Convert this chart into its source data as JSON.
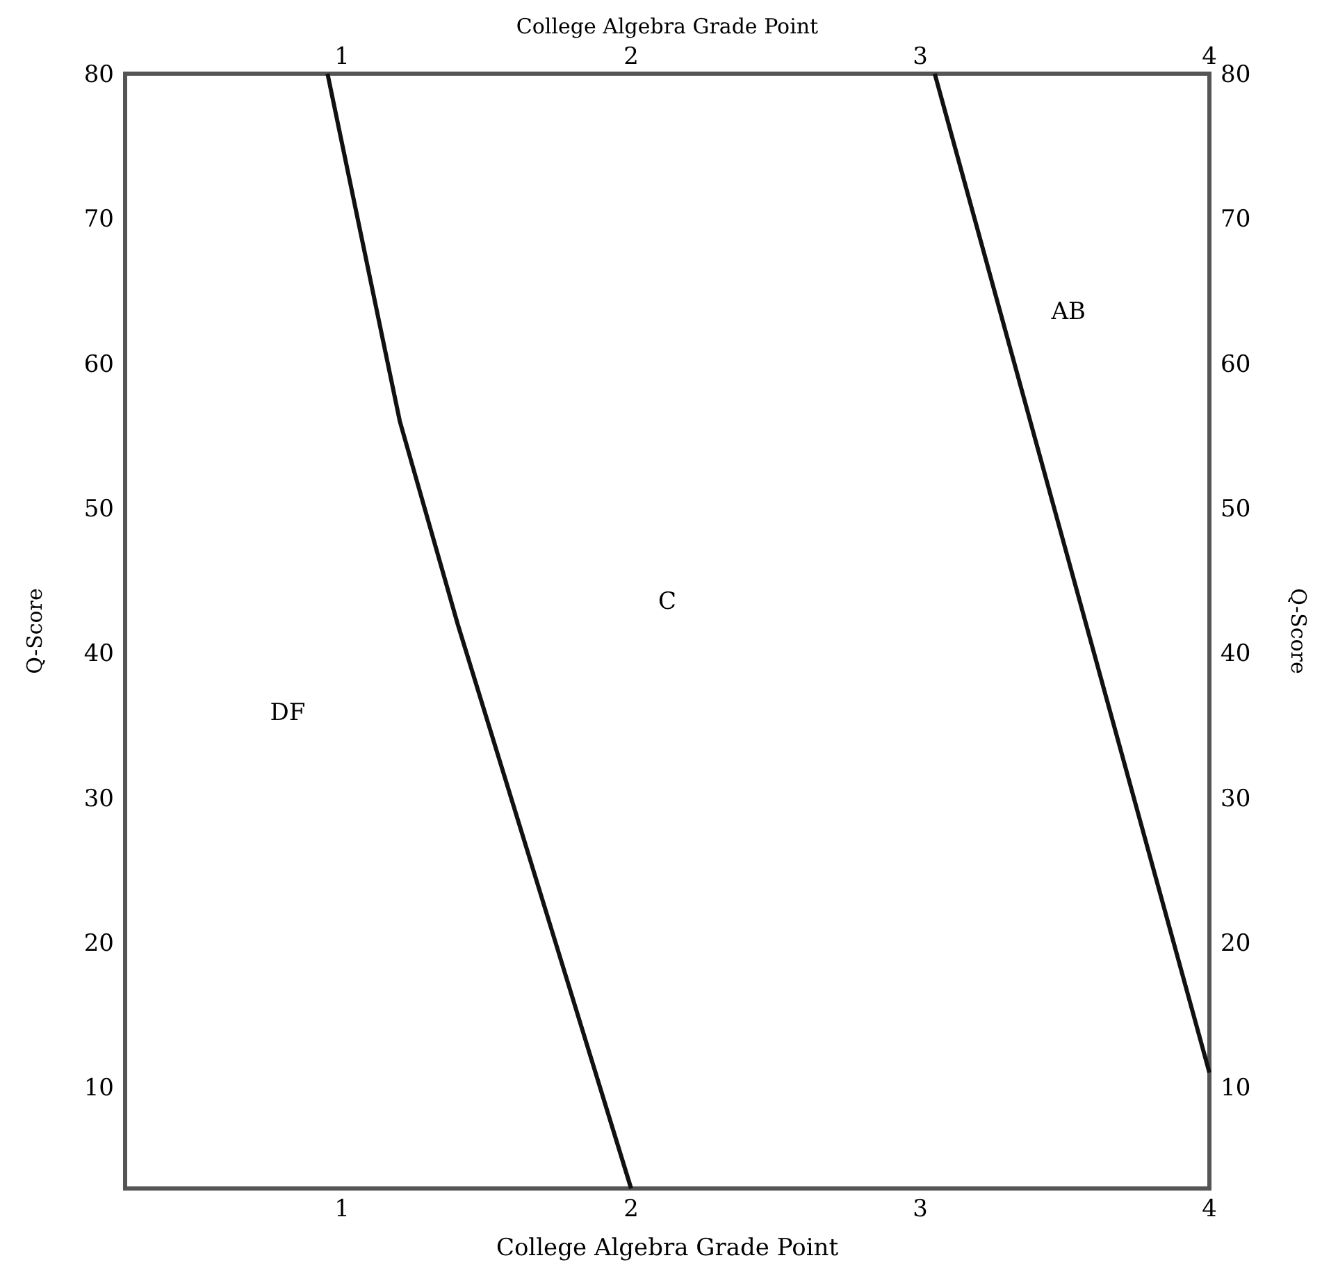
{
  "chart_data": {
    "type": "line",
    "xlabel": "College Algebra Grade Point",
    "x2label": "College Algebra Grade Point",
    "ylabel": "Q-Score",
    "y2label": "Q-Score",
    "xlim": [
      0.25,
      4
    ],
    "xticks": [
      1,
      2,
      3,
      4
    ],
    "x2lim": [
      0.25,
      4
    ],
    "x2ticks": [
      1,
      2,
      3,
      4
    ],
    "ylim": [
      3,
      80
    ],
    "yticks": [
      10,
      20,
      30,
      40,
      50,
      60,
      70,
      80
    ],
    "y2lim": [
      3,
      80
    ],
    "y2ticks": [
      10,
      20,
      30,
      40,
      50,
      60,
      70,
      80
    ],
    "series": [
      {
        "color": "#111111",
        "x": [
          0.95,
          1.2,
          1.4,
          2
        ],
        "values": [
          80,
          56,
          42,
          3
        ]
      },
      {
        "color": "#111111",
        "x": [
          3.05,
          4
        ],
        "values": [
          80,
          11
        ]
      }
    ],
    "annotations": [
      "DF",
      "C",
      "AB"
    ],
    "grid": false,
    "marker": "none",
    "line_style": "solid"
  }
}
